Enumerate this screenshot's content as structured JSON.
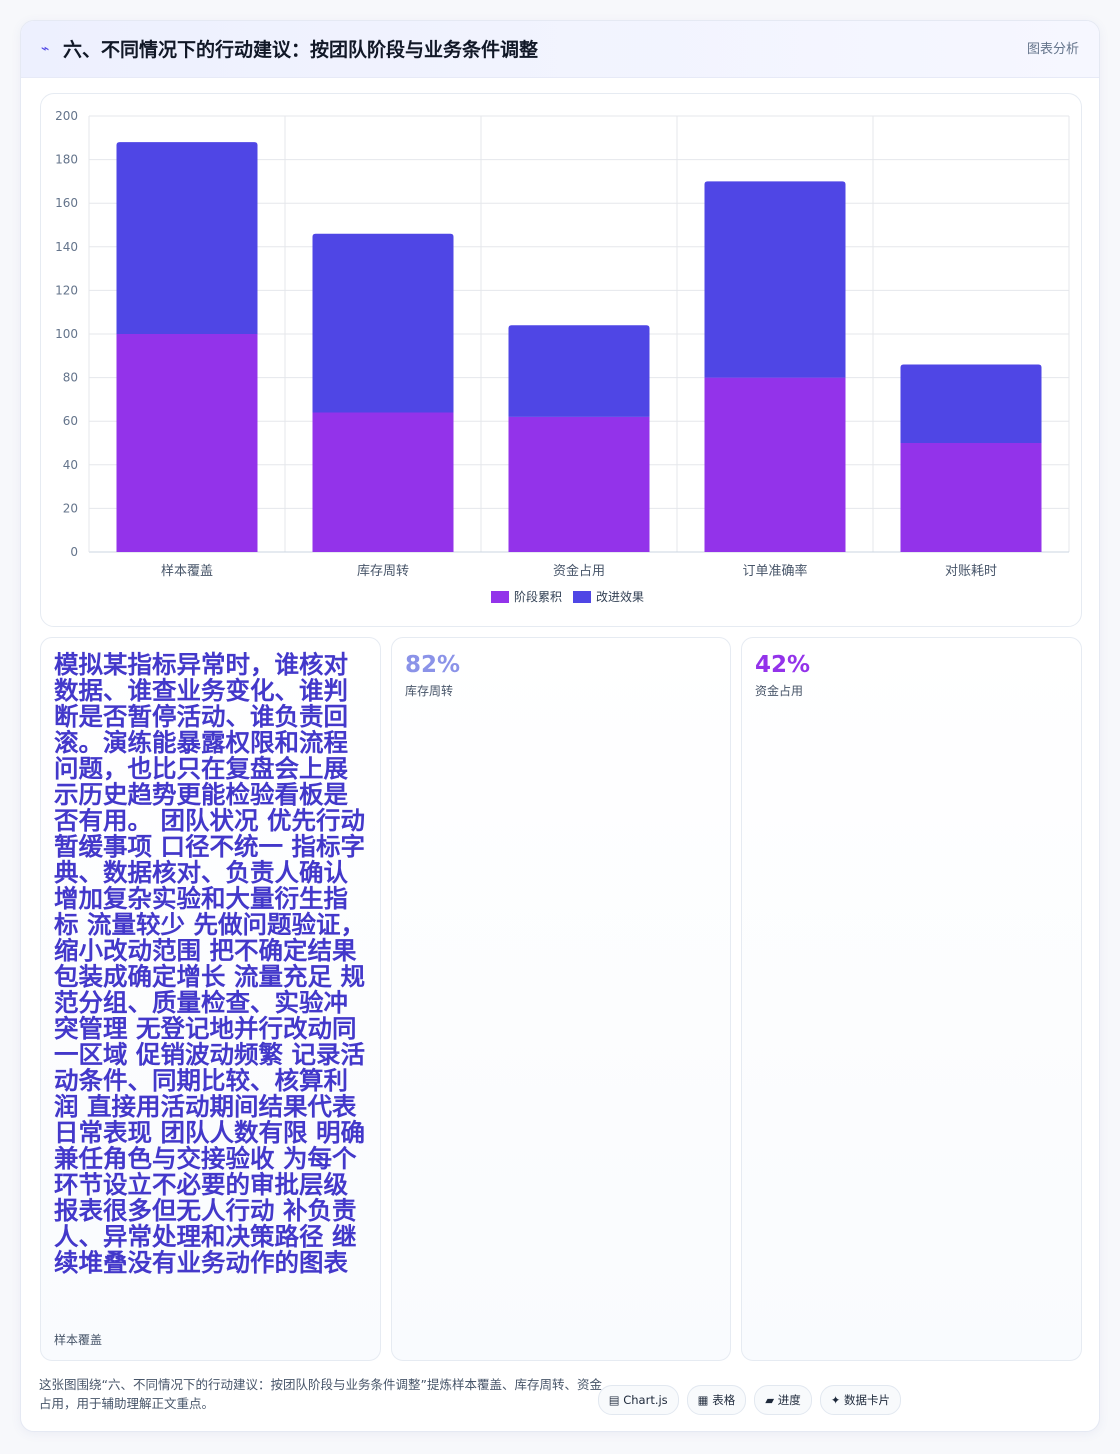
{
  "header": {
    "icon": "trend-line-icon",
    "icon_glyph": "⌁",
    "title": "六、不同情况下的行动建议：按团队阶段与业务条件调整",
    "tag": "图表分析"
  },
  "chart_data": {
    "type": "bar",
    "stacked": true,
    "categories": [
      "样本覆盖",
      "库存周转",
      "资金占用",
      "订单准确率",
      "对账耗时"
    ],
    "series": [
      {
        "name": "阶段累积",
        "color": "#9333ea",
        "values": [
          100,
          64,
          62,
          80,
          50
        ]
      },
      {
        "name": "改进效果",
        "color": "#4f46e5",
        "values": [
          88,
          82,
          42,
          90,
          36
        ]
      }
    ],
    "ylim": [
      0,
      200
    ],
    "yticks": [
      0,
      20,
      40,
      60,
      80,
      100,
      120,
      140,
      160,
      180,
      200
    ],
    "grid": true,
    "legend_position": "bottom"
  },
  "cards": [
    {
      "text": "模拟某指标异常时，谁核对数据、谁查业务变化、谁判断是否暂停活动、谁负责回滚。演练能暴露权限和流程问题，也比只在复盘会上展示历史趋势更能检验看板是否有用。 团队状况 优先行动 暂缓事项 口径不统一 指标字典、数据核对、负责人确认 增加复杂实验和大量衍生指标 流量较少 先做问题验证，缩小改动范围 把不确定结果包装成确定增长 流量充足 规范分组、质量检查、实验冲突管理 无登记地并行改动同一区域 促销波动频繁 记录活动条件、同期比较、核算利润 直接用活动期间结果代表日常表现 团队人数有限 明确兼任角色与交接验收 为每个环节设立不必要的审批层级 报表很多但无人行动 补负责人、异常处理和决策路径 继续堆叠没有业务动作的图表",
      "label": "样本覆盖"
    },
    {
      "value": "82%",
      "label": "库存周转",
      "color": "#8b93e8"
    },
    {
      "value": "42%",
      "label": "资金占用",
      "color": "#9333ea"
    }
  ],
  "footer": {
    "note": "这张图围绕“六、不同情况下的行动建议：按团队阶段与业务条件调整”提炼样本覆盖、库存周转、资金占用，用于辅助理解正文重点。",
    "chips": [
      "▤ Chart.js",
      "▦ 表格",
      "▰ 进度",
      "✦ 数据卡片"
    ]
  }
}
